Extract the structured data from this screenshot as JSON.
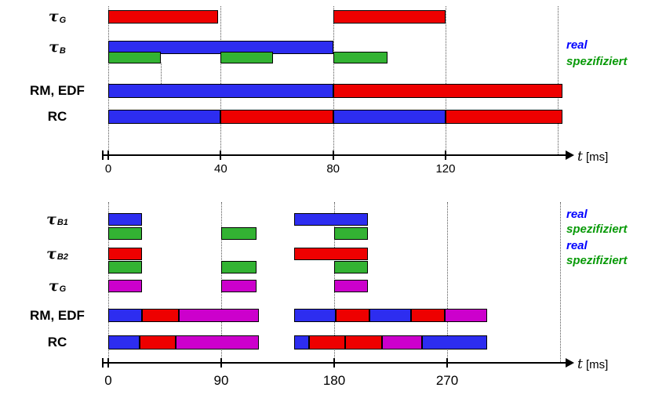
{
  "colors": {
    "red": "#ee0000",
    "blue": "#2d2df0",
    "green": "#33b333",
    "magenta": "#cc00cc",
    "legend_blue": "#0000ff",
    "legend_green": "#089a08"
  },
  "diagrams": [
    {
      "id": "top",
      "rows": [
        {
          "key": "tauG",
          "label": {
            "tau": "τ",
            "sub": "G"
          },
          "bars": [
            {
              "s": 0,
              "e": 39,
              "c": "red"
            },
            {
              "s": 80,
              "e": 120,
              "c": "red"
            }
          ]
        },
        {
          "key": "tauB-real",
          "label": {
            "tau": "τ",
            "sub": "B"
          },
          "bars": [
            {
              "s": 0,
              "e": 80,
              "c": "blue"
            }
          ]
        },
        {
          "key": "tauB-spec",
          "bars": [
            {
              "s": 0,
              "e": 18.6,
              "c": "green"
            },
            {
              "s": 40,
              "e": 58.6,
              "c": "green"
            },
            {
              "s": 80,
              "e": 99.4,
              "c": "green"
            }
          ]
        },
        {
          "key": "rmedf",
          "label": {
            "text": "RM, EDF"
          },
          "bars": [
            {
              "s": 0,
              "e": 80,
              "c": "blue"
            },
            {
              "s": 80,
              "e": 161.6,
              "c": "red"
            }
          ]
        },
        {
          "key": "rc",
          "label": {
            "text": "RC"
          },
          "bars": [
            {
              "s": 0,
              "e": 40,
              "c": "blue"
            },
            {
              "s": 40,
              "e": 80,
              "c": "red"
            },
            {
              "s": 80,
              "e": 120,
              "c": "blue"
            },
            {
              "s": 120,
              "e": 161.6,
              "c": "red"
            }
          ]
        }
      ],
      "axis": {
        "tick_ms": [
          0,
          40,
          80,
          120
        ],
        "tick_labels": [
          "0",
          "40",
          "80",
          "120"
        ],
        "grid_ms": [
          0,
          40,
          80,
          120,
          160
        ],
        "t": "t",
        "unit": "[ms]"
      },
      "legend": [
        {
          "text": "real",
          "color_key": "legend_blue"
        },
        {
          "text": "spezifiziert",
          "color_key": "legend_green"
        }
      ]
    },
    {
      "id": "bottom",
      "rows": [
        {
          "key": "tauB1-real",
          "label": {
            "tau": "τ",
            "sub": "B1"
          },
          "bars": [
            {
              "s": 0,
              "e": 27,
              "c": "blue"
            },
            {
              "s": 148,
              "e": 207,
              "c": "blue"
            }
          ]
        },
        {
          "key": "tauB1-spec",
          "bars": [
            {
              "s": 0,
              "e": 27,
              "c": "green"
            },
            {
              "s": 90,
              "e": 118,
              "c": "green"
            },
            {
              "s": 180,
              "e": 207,
              "c": "green"
            }
          ]
        },
        {
          "key": "tauB2-real",
          "label": {
            "tau": "τ",
            "sub": "B2"
          },
          "bars": [
            {
              "s": 0,
              "e": 27,
              "c": "red"
            },
            {
              "s": 148,
              "e": 207,
              "c": "red"
            }
          ]
        },
        {
          "key": "tauB2-spec",
          "bars": [
            {
              "s": 0,
              "e": 27,
              "c": "green"
            },
            {
              "s": 90,
              "e": 118,
              "c": "green"
            },
            {
              "s": 180,
              "e": 207,
              "c": "green"
            }
          ]
        },
        {
          "key": "tauG",
          "label": {
            "tau": "τ",
            "sub": "G"
          },
          "bars": [
            {
              "s": 0,
              "e": 27,
              "c": "magenta"
            },
            {
              "s": 90,
              "e": 118,
              "c": "magenta"
            },
            {
              "s": 180,
              "e": 207,
              "c": "magenta"
            }
          ]
        },
        {
          "key": "rmedf",
          "label": {
            "text": "RM, EDF"
          },
          "bars": [
            {
              "s": 0,
              "e": 27,
              "c": "blue"
            },
            {
              "s": 27,
              "e": 56,
              "c": "red"
            },
            {
              "s": 56,
              "e": 120,
              "c": "magenta"
            },
            {
              "s": 148,
              "e": 181,
              "c": "blue"
            },
            {
              "s": 181,
              "e": 208,
              "c": "red"
            },
            {
              "s": 208,
              "e": 241,
              "c": "blue"
            },
            {
              "s": 241,
              "e": 268,
              "c": "red"
            },
            {
              "s": 268,
              "e": 302,
              "c": "magenta"
            }
          ]
        },
        {
          "key": "rc",
          "label": {
            "text": "RC"
          },
          "bars": [
            {
              "s": 0,
              "e": 25,
              "c": "blue"
            },
            {
              "s": 25,
              "e": 54,
              "c": "red"
            },
            {
              "s": 54,
              "e": 120,
              "c": "magenta"
            },
            {
              "s": 148,
              "e": 160,
              "c": "blue"
            },
            {
              "s": 160,
              "e": 189,
              "c": "red"
            },
            {
              "s": 189,
              "e": 218,
              "c": "red"
            },
            {
              "s": 218,
              "e": 250,
              "c": "magenta"
            },
            {
              "s": 250,
              "e": 302,
              "c": "blue"
            }
          ]
        }
      ],
      "axis": {
        "tick_ms": [
          0,
          90,
          180,
          270
        ],
        "tick_labels": [
          "0",
          "90",
          "180",
          "270"
        ],
        "grid_ms": [
          0,
          90,
          180,
          270,
          360
        ],
        "t": "t",
        "unit": "[ms]"
      },
      "legend": [
        {
          "text": "real",
          "color_key": "legend_blue"
        },
        {
          "text": "spezifiziert",
          "color_key": "legend_green"
        },
        {
          "text": "real",
          "color_key": "legend_blue"
        },
        {
          "text": "spezifiziert",
          "color_key": "legend_green"
        }
      ]
    }
  ]
}
